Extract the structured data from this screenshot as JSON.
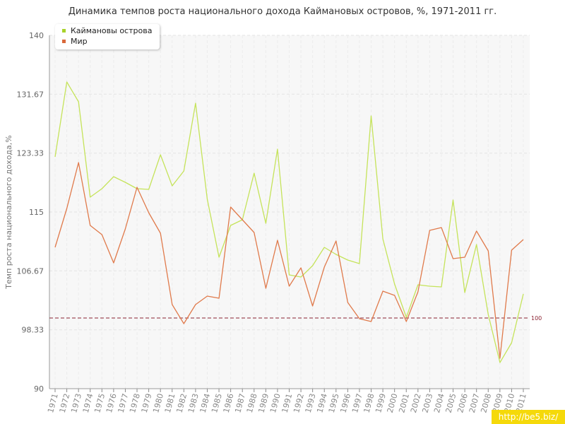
{
  "chart_data": {
    "type": "line",
    "title": "Динамика темпов роста национального дохода Каймановых островов, %, 1971-2011 гг.",
    "xlabel": "",
    "ylabel": "Темп роста национального дохода,%",
    "ylim": [
      90,
      140
    ],
    "yticks": [
      "90",
      "98.33",
      "106.67",
      "115",
      "123.33",
      "131.67",
      "140"
    ],
    "grid": true,
    "legend_position": "top-left",
    "reference_line": {
      "value": 100,
      "label": "100",
      "color": "#8b2332"
    },
    "categories": [
      "1971",
      "1972",
      "1973",
      "1974",
      "1975",
      "1976",
      "1977",
      "1978",
      "1979",
      "1980",
      "1981",
      "1982",
      "1983",
      "1984",
      "1985",
      "1986",
      "1987",
      "1988",
      "1989",
      "1990",
      "1991",
      "1992",
      "1993",
      "1994",
      "1995",
      "1996",
      "1997",
      "1998",
      "1999",
      "2000",
      "2001",
      "2002",
      "2003",
      "2004",
      "2005",
      "2006",
      "2007",
      "2008",
      "2009",
      "2010",
      "2011"
    ],
    "series": [
      {
        "name": "Каймановы острова",
        "color": "#c5e35a",
        "values": [
          122.8,
          133.4,
          130.6,
          117.1,
          118.3,
          120.0,
          119.2,
          118.3,
          118.2,
          123.1,
          118.7,
          120.8,
          130.4,
          116.8,
          108.6,
          113.1,
          113.9,
          120.5,
          113.4,
          123.9,
          106.1,
          105.8,
          107.4,
          110.0,
          109.0,
          108.2,
          107.7,
          128.6,
          111.2,
          104.8,
          100.1,
          104.7,
          104.5,
          104.4,
          116.7,
          103.6,
          110.4,
          100.5,
          93.7,
          96.5,
          103.4
        ]
      },
      {
        "name": "Мир",
        "color": "#e07a4b",
        "values": [
          110.0,
          115.5,
          122.0,
          113.1,
          111.8,
          107.8,
          112.6,
          118.5,
          114.9,
          112.0,
          101.9,
          99.2,
          101.9,
          103.1,
          102.8,
          115.7,
          113.9,
          112.1,
          104.2,
          111.0,
          104.5,
          107.1,
          101.7,
          107.2,
          110.9,
          102.2,
          99.9,
          99.5,
          103.8,
          103.2,
          99.5,
          103.7,
          112.4,
          112.8,
          108.4,
          108.6,
          112.3,
          109.5,
          94.3,
          109.6,
          111.1
        ]
      }
    ]
  },
  "watermark": "http://be5.biz/"
}
